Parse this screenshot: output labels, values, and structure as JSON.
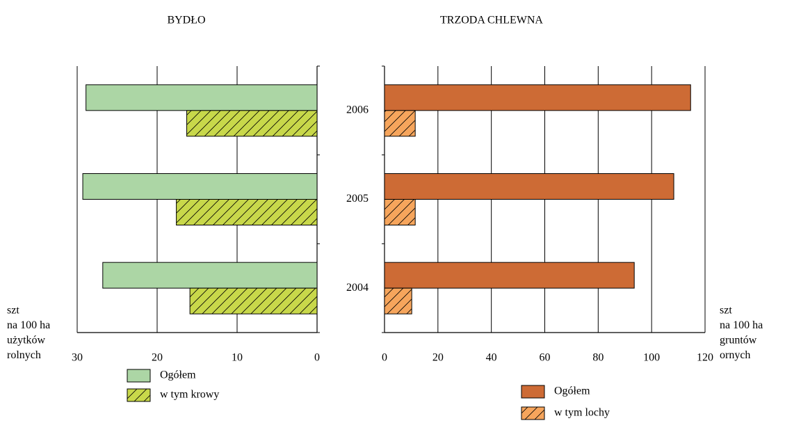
{
  "chart_data": [
    {
      "type": "bar",
      "orientation": "horizontal",
      "title": "BYDŁO",
      "categories": [
        null,
        null,
        null
      ],
      "xlim": [
        30,
        0
      ],
      "xticks": [
        30,
        20,
        10,
        0
      ],
      "grid": true,
      "xlabel": [
        "szt",
        "na 100 ha",
        "użytków",
        "rolnych"
      ],
      "series": [
        {
          "name": "Ogółem",
          "color": "#acd6a5",
          "hatch": false,
          "values": [
            28.9,
            29.3,
            26.8
          ]
        },
        {
          "name": "w tym krowy",
          "color": "#c8d84a",
          "hatch": true,
          "values": [
            16.3,
            17.6,
            15.9
          ]
        }
      ]
    },
    {
      "type": "bar",
      "orientation": "horizontal",
      "title": "TRZODA CHLEWNA",
      "categories": [
        "2006",
        "2005",
        "2004"
      ],
      "xlim": [
        0,
        120
      ],
      "xticks": [
        0,
        20,
        40,
        60,
        80,
        100,
        120
      ],
      "grid": true,
      "xlabel": [
        "szt",
        "na 100 ha",
        "gruntów",
        "ornych"
      ],
      "series": [
        {
          "name": "Ogółem",
          "color": "#cd6b35",
          "hatch": false,
          "values": [
            114.6,
            108.3,
            93.5
          ]
        },
        {
          "name": "w tym lochy",
          "color": "#f6a55c",
          "hatch": true,
          "values": [
            11.5,
            11.5,
            10.2
          ]
        }
      ]
    }
  ]
}
